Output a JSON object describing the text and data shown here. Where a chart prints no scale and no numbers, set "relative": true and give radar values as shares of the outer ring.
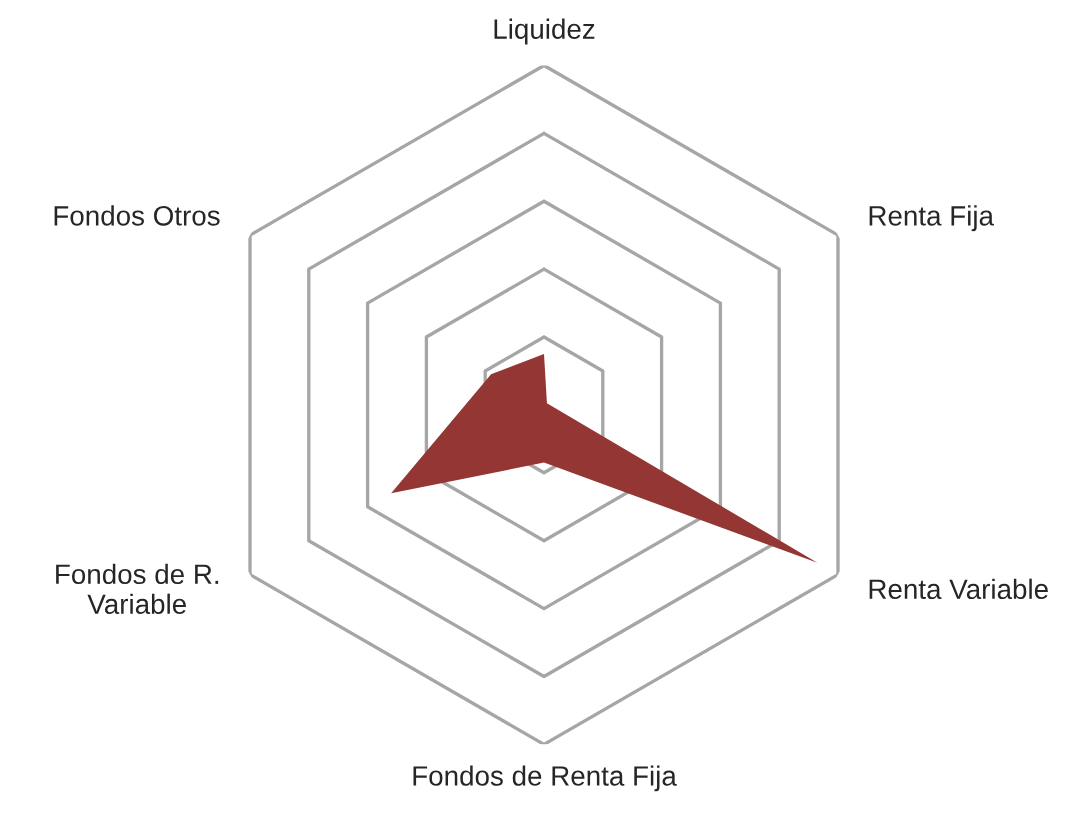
{
  "chart_data": {
    "type": "radar",
    "relative": true,
    "categories": [
      "Liquidez",
      "Renta Fija",
      "Renta Variable",
      "Fondos de Renta Fija",
      "Fondos de R.\nVariable",
      "Fondos Otros"
    ],
    "series": [
      {
        "color": "#943634",
        "values": [
          0.15,
          0.01,
          0.93,
          0.17,
          0.52,
          0.18
        ]
      }
    ]
  }
}
